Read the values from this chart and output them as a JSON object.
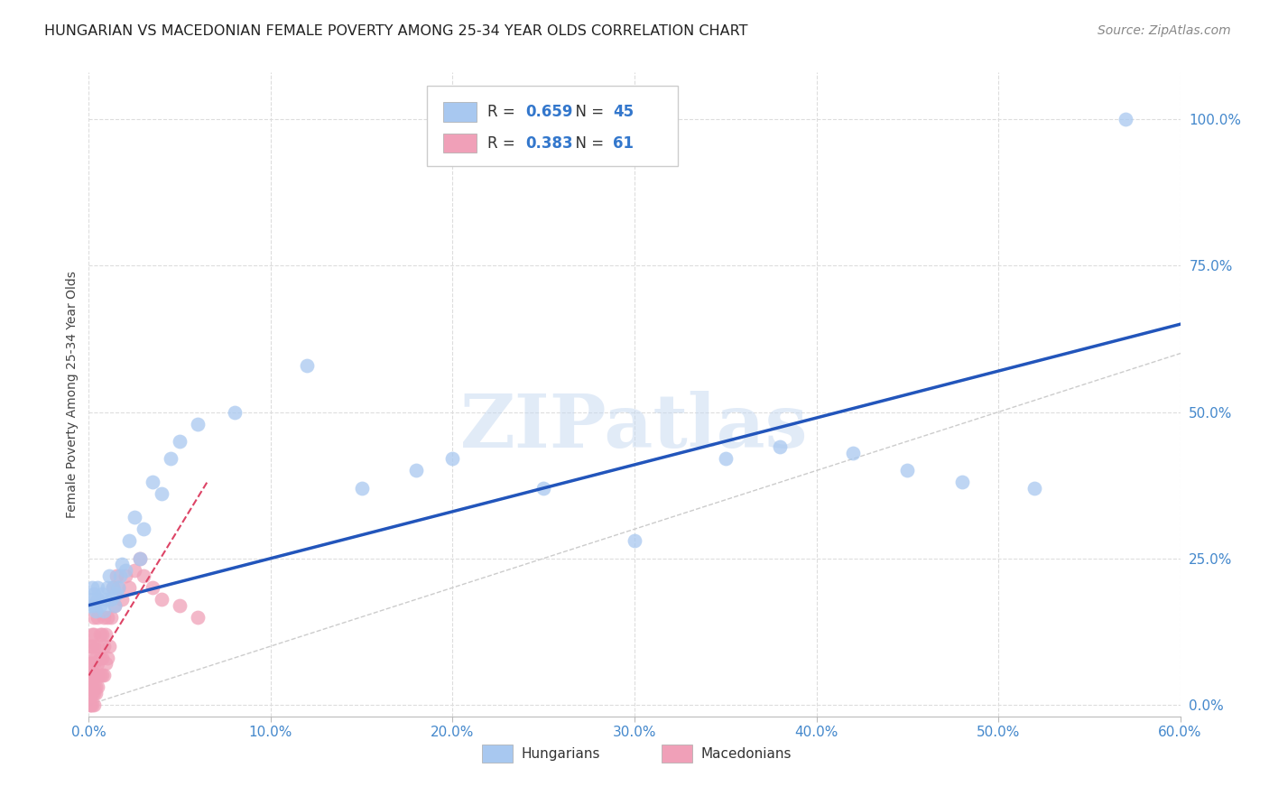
{
  "title": "HUNGARIAN VS MACEDONIAN FEMALE POVERTY AMONG 25-34 YEAR OLDS CORRELATION CHART",
  "source": "Source: ZipAtlas.com",
  "ylabel": "Female Poverty Among 25-34 Year Olds",
  "xlim": [
    0.0,
    0.6
  ],
  "ylim": [
    -0.02,
    1.08
  ],
  "hungarian_color": "#a8c8f0",
  "macedonian_color": "#f0a0b8",
  "hungarian_R": 0.659,
  "hungarian_N": 45,
  "macedonian_R": 0.383,
  "macedonian_N": 61,
  "hungarian_line_color": "#2255bb",
  "macedonian_line_color": "#dd4466",
  "diagonal_color": "#cccccc",
  "watermark": "ZIPatlas",
  "hun_x": [
    0.001,
    0.002,
    0.002,
    0.003,
    0.003,
    0.004,
    0.005,
    0.005,
    0.006,
    0.007,
    0.008,
    0.009,
    0.01,
    0.011,
    0.012,
    0.013,
    0.014,
    0.015,
    0.016,
    0.017,
    0.018,
    0.02,
    0.022,
    0.025,
    0.028,
    0.03,
    0.035,
    0.04,
    0.045,
    0.05,
    0.06,
    0.08,
    0.12,
    0.15,
    0.18,
    0.2,
    0.25,
    0.3,
    0.35,
    0.38,
    0.42,
    0.45,
    0.48,
    0.52,
    0.57
  ],
  "hun_y": [
    0.17,
    0.18,
    0.2,
    0.17,
    0.19,
    0.16,
    0.18,
    0.2,
    0.17,
    0.19,
    0.16,
    0.18,
    0.2,
    0.22,
    0.18,
    0.2,
    0.17,
    0.19,
    0.2,
    0.22,
    0.24,
    0.23,
    0.28,
    0.32,
    0.25,
    0.3,
    0.38,
    0.36,
    0.42,
    0.45,
    0.48,
    0.5,
    0.58,
    0.37,
    0.4,
    0.42,
    0.37,
    0.28,
    0.42,
    0.44,
    0.43,
    0.4,
    0.38,
    0.37,
    1.0
  ],
  "mac_x": [
    0.001,
    0.001,
    0.001,
    0.001,
    0.001,
    0.001,
    0.001,
    0.001,
    0.002,
    0.002,
    0.002,
    0.002,
    0.002,
    0.002,
    0.002,
    0.003,
    0.003,
    0.003,
    0.003,
    0.003,
    0.003,
    0.003,
    0.003,
    0.004,
    0.004,
    0.004,
    0.004,
    0.005,
    0.005,
    0.005,
    0.005,
    0.005,
    0.006,
    0.006,
    0.006,
    0.007,
    0.007,
    0.007,
    0.008,
    0.008,
    0.008,
    0.009,
    0.009,
    0.01,
    0.01,
    0.011,
    0.012,
    0.013,
    0.014,
    0.015,
    0.016,
    0.018,
    0.02,
    0.022,
    0.025,
    0.028,
    0.03,
    0.035,
    0.04,
    0.05,
    0.06
  ],
  "mac_y": [
    0.0,
    0.0,
    0.02,
    0.03,
    0.05,
    0.07,
    0.08,
    0.1,
    0.0,
    0.02,
    0.03,
    0.05,
    0.07,
    0.1,
    0.12,
    0.0,
    0.02,
    0.03,
    0.05,
    0.07,
    0.1,
    0.12,
    0.15,
    0.02,
    0.03,
    0.05,
    0.08,
    0.03,
    0.05,
    0.07,
    0.1,
    0.15,
    0.05,
    0.08,
    0.12,
    0.05,
    0.08,
    0.12,
    0.05,
    0.1,
    0.15,
    0.07,
    0.12,
    0.08,
    0.15,
    0.1,
    0.15,
    0.2,
    0.17,
    0.22,
    0.2,
    0.18,
    0.22,
    0.2,
    0.23,
    0.25,
    0.22,
    0.2,
    0.18,
    0.17,
    0.15
  ]
}
